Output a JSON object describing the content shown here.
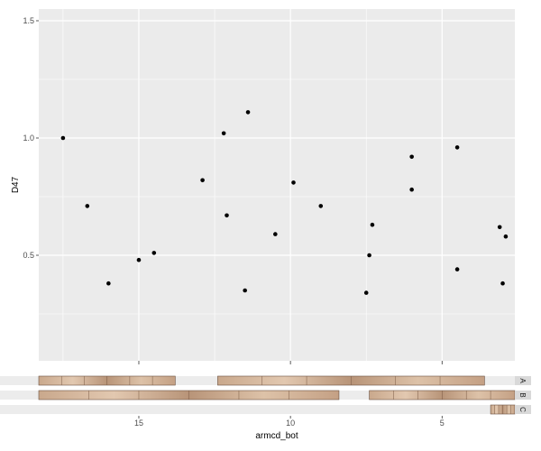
{
  "chart_data": {
    "type": "scatter",
    "xlabel": "armcd_bot",
    "ylabel": "D47",
    "x_reversed": true,
    "y_reversed": true,
    "xlim": [
      18.3,
      2.6
    ],
    "ylim": [
      1.55,
      0.05
    ],
    "x_ticks": [
      15,
      10,
      5
    ],
    "x_tick_labels": [
      "15",
      "10",
      "5"
    ],
    "y_ticks": [
      0.5,
      1.0,
      1.5
    ],
    "y_tick_labels": [
      "0.5",
      "1.0",
      "1.5"
    ],
    "grid": true,
    "panel_background": "#ebebeb",
    "grid_color": "#ffffff",
    "point_color": "#000000",
    "points": [
      {
        "x": 17.5,
        "y": 1.0
      },
      {
        "x": 16.7,
        "y": 0.71
      },
      {
        "x": 16.0,
        "y": 0.38
      },
      {
        "x": 15.0,
        "y": 0.48
      },
      {
        "x": 14.5,
        "y": 0.51
      },
      {
        "x": 12.9,
        "y": 0.82
      },
      {
        "x": 12.2,
        "y": 1.02
      },
      {
        "x": 12.1,
        "y": 0.67
      },
      {
        "x": 11.5,
        "y": 0.35
      },
      {
        "x": 11.4,
        "y": 1.11
      },
      {
        "x": 10.5,
        "y": 0.59
      },
      {
        "x": 9.9,
        "y": 0.81
      },
      {
        "x": 9.0,
        "y": 0.71
      },
      {
        "x": 7.5,
        "y": 0.34
      },
      {
        "x": 7.4,
        "y": 0.5
      },
      {
        "x": 7.3,
        "y": 0.63
      },
      {
        "x": 6.0,
        "y": 0.78
      },
      {
        "x": 6.0,
        "y": 0.92
      },
      {
        "x": 4.5,
        "y": 0.44
      },
      {
        "x": 4.5,
        "y": 0.96
      },
      {
        "x": 3.1,
        "y": 0.62
      },
      {
        "x": 3.0,
        "y": 0.38
      },
      {
        "x": 2.9,
        "y": 0.58
      }
    ],
    "core_strips": [
      {
        "label": "A",
        "segments": [
          {
            "x_start": 18.3,
            "x_end": 13.8
          },
          {
            "x_start": 12.4,
            "x_end": 3.6
          }
        ]
      },
      {
        "label": "B",
        "segments": [
          {
            "x_start": 18.3,
            "x_end": 8.4
          },
          {
            "x_start": 7.4,
            "x_end": 2.6
          }
        ]
      },
      {
        "label": "C",
        "segments": [
          {
            "x_start": 3.4,
            "x_end": 2.6
          }
        ]
      }
    ]
  }
}
